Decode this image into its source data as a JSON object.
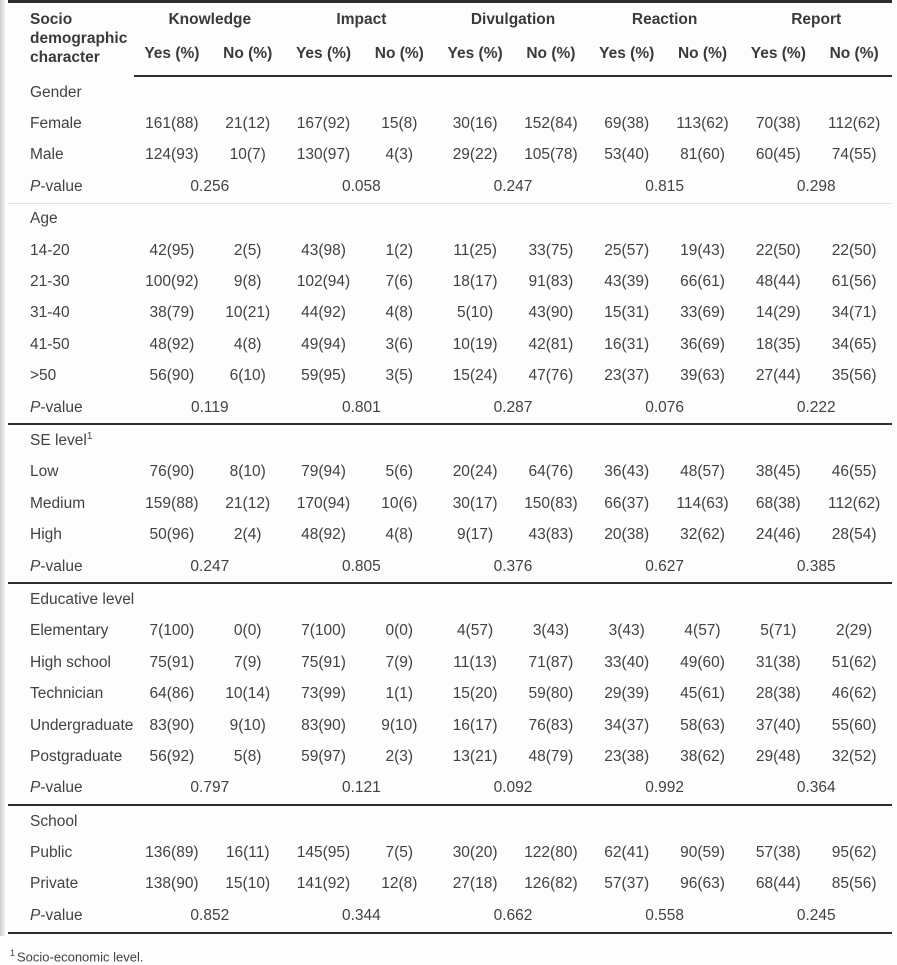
{
  "table": {
    "corner_header": "Socio demographic character",
    "groups": [
      {
        "label": "Knowledge"
      },
      {
        "label": "Impact"
      },
      {
        "label": "Divulgation"
      },
      {
        "label": "Reaction"
      },
      {
        "label": "Report"
      }
    ],
    "sub_headers": {
      "yes": "Yes (%)",
      "no": "No (%)"
    },
    "p_label": {
      "italic": "P",
      "rest": "-value"
    },
    "sections": [
      {
        "title": "Gender",
        "title_sup": "",
        "rows": [
          {
            "label": "Female",
            "cells": [
              "161(88)",
              "21(12)",
              "167(92)",
              "15(8)",
              "30(16)",
              "152(84)",
              "69(38)",
              "113(62)",
              "70(38)",
              "112(62)"
            ]
          },
          {
            "label": "Male",
            "cells": [
              "124(93)",
              "10(7)",
              "130(97)",
              "4(3)",
              "29(22)",
              "105(78)",
              "53(40)",
              "81(60)",
              "60(45)",
              "74(55)"
            ]
          }
        ],
        "p_values": [
          "0.256",
          "0.058",
          "0.247",
          "0.815",
          "0.298"
        ]
      },
      {
        "title": "Age",
        "title_sup": "",
        "rows": [
          {
            "label": "14-20",
            "cells": [
              "42(95)",
              "2(5)",
              "43(98)",
              "1(2)",
              "11(25)",
              "33(75)",
              "25(57)",
              "19(43)",
              "22(50)",
              "22(50)"
            ]
          },
          {
            "label": "21-30",
            "cells": [
              "100(92)",
              "9(8)",
              "102(94)",
              "7(6)",
              "18(17)",
              "91(83)",
              "43(39)",
              "66(61)",
              "48(44)",
              "61(56)"
            ]
          },
          {
            "label": "31-40",
            "cells": [
              "38(79)",
              "10(21)",
              "44(92)",
              "4(8)",
              "5(10)",
              "43(90)",
              "15(31)",
              "33(69)",
              "14(29)",
              "34(71)"
            ]
          },
          {
            "label": "41-50",
            "cells": [
              "48(92)",
              "4(8)",
              "49(94)",
              "3(6)",
              "10(19)",
              "42(81)",
              "16(31)",
              "36(69)",
              "18(35)",
              "34(65)"
            ]
          },
          {
            "label": ">50",
            "cells": [
              "56(90)",
              "6(10)",
              "59(95)",
              "3(5)",
              "15(24)",
              "47(76)",
              "23(37)",
              "39(63)",
              "27(44)",
              "35(56)"
            ]
          }
        ],
        "p_values": [
          "0.119",
          "0.801",
          "0.287",
          "0.076",
          "0.222"
        ]
      },
      {
        "title": "SE level",
        "title_sup": "1",
        "rows": [
          {
            "label": "Low",
            "cells": [
              "76(90)",
              "8(10)",
              "79(94)",
              "5(6)",
              "20(24)",
              "64(76)",
              "36(43)",
              "48(57)",
              "38(45)",
              "46(55)"
            ]
          },
          {
            "label": "Medium",
            "cells": [
              "159(88)",
              "21(12)",
              "170(94)",
              "10(6)",
              "30(17)",
              "150(83)",
              "66(37)",
              "114(63)",
              "68(38)",
              "112(62)"
            ]
          },
          {
            "label": "High",
            "cells": [
              "50(96)",
              "2(4)",
              "48(92)",
              "4(8)",
              "9(17)",
              "43(83)",
              "20(38)",
              "32(62)",
              "24(46)",
              "28(54)"
            ]
          }
        ],
        "p_values": [
          "0.247",
          "0.805",
          "0.376",
          "0.627",
          "0.385"
        ]
      },
      {
        "title": "Educative level",
        "title_sup": "",
        "rows": [
          {
            "label": "Elementary",
            "cells": [
              "7(100)",
              "0(0)",
              "7(100)",
              "0(0)",
              "4(57)",
              "3(43)",
              "3(43)",
              "4(57)",
              "5(71)",
              "2(29)"
            ]
          },
          {
            "label": "High school",
            "cells": [
              "75(91)",
              "7(9)",
              "75(91)",
              "7(9)",
              "11(13)",
              "71(87)",
              "33(40)",
              "49(60)",
              "31(38)",
              "51(62)"
            ]
          },
          {
            "label": "Technician",
            "cells": [
              "64(86)",
              "10(14)",
              "73(99)",
              "1(1)",
              "15(20)",
              "59(80)",
              "29(39)",
              "45(61)",
              "28(38)",
              "46(62)"
            ]
          },
          {
            "label": "Undergraduate",
            "cells": [
              "83(90)",
              "9(10)",
              "83(90)",
              "9(10)",
              "16(17)",
              "76(83)",
              "34(37)",
              "58(63)",
              "37(40)",
              "55(60)"
            ]
          },
          {
            "label": "Postgraduate",
            "cells": [
              "56(92)",
              "5(8)",
              "59(97)",
              "2(3)",
              "13(21)",
              "48(79)",
              "23(38)",
              "38(62)",
              "29(48)",
              "32(52)"
            ]
          }
        ],
        "p_values": [
          "0.797",
          "0.121",
          "0.092",
          "0.992",
          "0.364"
        ]
      },
      {
        "title": "School",
        "title_sup": "",
        "rows": [
          {
            "label": "Public",
            "cells": [
              "136(89)",
              "16(11)",
              "145(95)",
              "7(5)",
              "30(20)",
              "122(80)",
              "62(41)",
              "90(59)",
              "57(38)",
              "95(62)"
            ]
          },
          {
            "label": "Private",
            "cells": [
              "138(90)",
              "15(10)",
              "141(92)",
              "12(8)",
              "27(18)",
              "126(82)",
              "57(37)",
              "96(63)",
              "68(44)",
              "85(56)"
            ]
          }
        ],
        "p_values": [
          "0.852",
          "0.344",
          "0.662",
          "0.558",
          "0.245"
        ]
      }
    ],
    "footnote": {
      "sup": "1",
      "text": "Socio-economic level."
    }
  }
}
